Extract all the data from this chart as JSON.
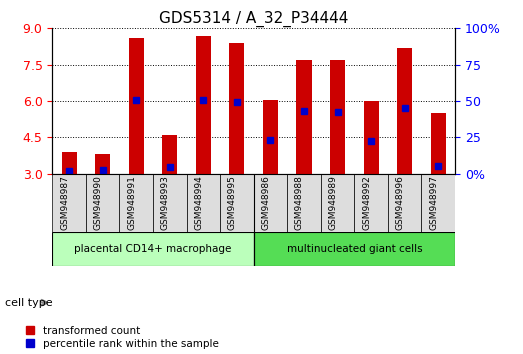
{
  "title": "GDS5314 / A_32_P34444",
  "samples": [
    "GSM948987",
    "GSM948990",
    "GSM948991",
    "GSM948993",
    "GSM948994",
    "GSM948995",
    "GSM948986",
    "GSM948988",
    "GSM948989",
    "GSM948992",
    "GSM948996",
    "GSM948997"
  ],
  "red_values": [
    3.9,
    3.8,
    8.6,
    4.6,
    8.7,
    8.4,
    6.05,
    7.7,
    7.7,
    6.0,
    8.2,
    5.5
  ],
  "blue_values": [
    3.1,
    3.15,
    6.05,
    3.25,
    6.05,
    5.95,
    4.4,
    5.6,
    5.55,
    4.35,
    5.7,
    3.3
  ],
  "ymin": 3.0,
  "ymax": 9.0,
  "yticks_left": [
    3.0,
    4.5,
    6.0,
    7.5,
    9.0
  ],
  "right_pcts": [
    0,
    25,
    50,
    75,
    100
  ],
  "right_pct_labels": [
    "0%",
    "25",
    "50",
    "75",
    "100%"
  ],
  "groups": [
    {
      "label": "placental CD14+ macrophage",
      "start": 0,
      "end": 6,
      "color": "#bbffbb"
    },
    {
      "label": "multinucleated giant cells",
      "start": 6,
      "end": 12,
      "color": "#55dd55"
    }
  ],
  "bar_color": "#cc0000",
  "dot_color": "#0000cc",
  "bar_bottom": 3.0,
  "title_fontsize": 11,
  "cell_type_label": "cell type",
  "legend_red_label": "transformed count",
  "legend_blue_label": "percentile rank within the sample"
}
